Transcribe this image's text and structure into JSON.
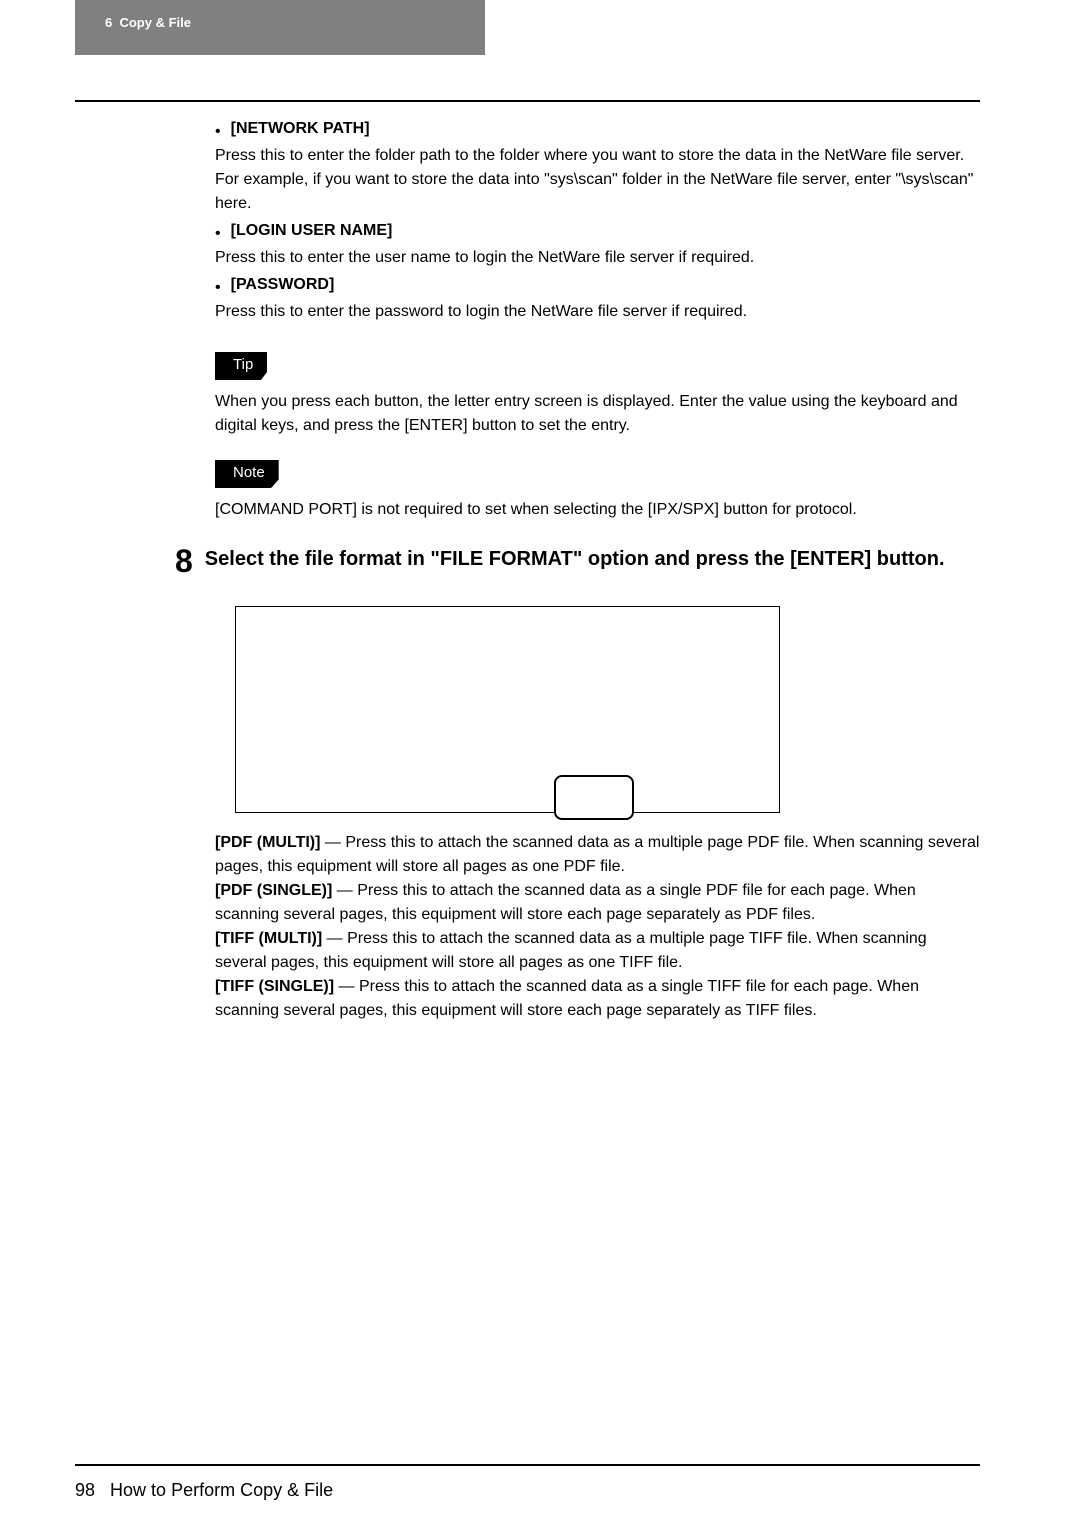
{
  "header": {
    "chapter": "6",
    "title": "Copy & File"
  },
  "bullets": [
    {
      "label": "[NETWORK PATH]",
      "text": "Press this to enter the folder path to the folder where you want to store the data in the NetWare file server.  For example, if you want to store the data into \"sys\\scan\" folder in the NetWare file server, enter \"\\sys\\scan\" here."
    },
    {
      "label": "[LOGIN USER NAME]",
      "text": "Press this to enter the user name to login the NetWare file server if required."
    },
    {
      "label": "[PASSWORD]",
      "text": "Press this to enter the password to login the NetWare file server if required."
    }
  ],
  "tip": {
    "label": "Tip",
    "text": "When you press each button, the letter entry screen is displayed. Enter the value using the keyboard and digital keys, and press the [ENTER] button to set the entry."
  },
  "note": {
    "label": "Note",
    "text": "[COMMAND PORT] is not required to set when selecting the [IPX/SPX] button for protocol."
  },
  "step": {
    "number": "8",
    "title": "Select the file format in \"FILE FORMAT\" option and press the [ENTER] button."
  },
  "formats": [
    {
      "label": "[PDF (MULTI)]",
      "text": " — Press this to attach the scanned data as a multiple page PDF file.  When scanning several pages, this equipment will store all pages as one PDF file."
    },
    {
      "label": "[PDF (SINGLE)]",
      "text": " — Press this to attach the scanned data as a single PDF file for each page.  When scanning several pages, this equipment will store each page separately as PDF files."
    },
    {
      "label": "[TIFF (MULTI)]",
      "text": " — Press this to attach the scanned data as a multiple page TIFF file.  When scanning several pages, this equipment will store all pages as one TIFF file."
    },
    {
      "label": "[TIFF (SINGLE)]",
      "text": " — Press this to attach the scanned data as a single TIFF file for each page.  When scanning several pages, this equipment will store each page separately as TIFF files."
    }
  ],
  "footer": {
    "page": "98",
    "section": "How to Perform Copy & File"
  }
}
